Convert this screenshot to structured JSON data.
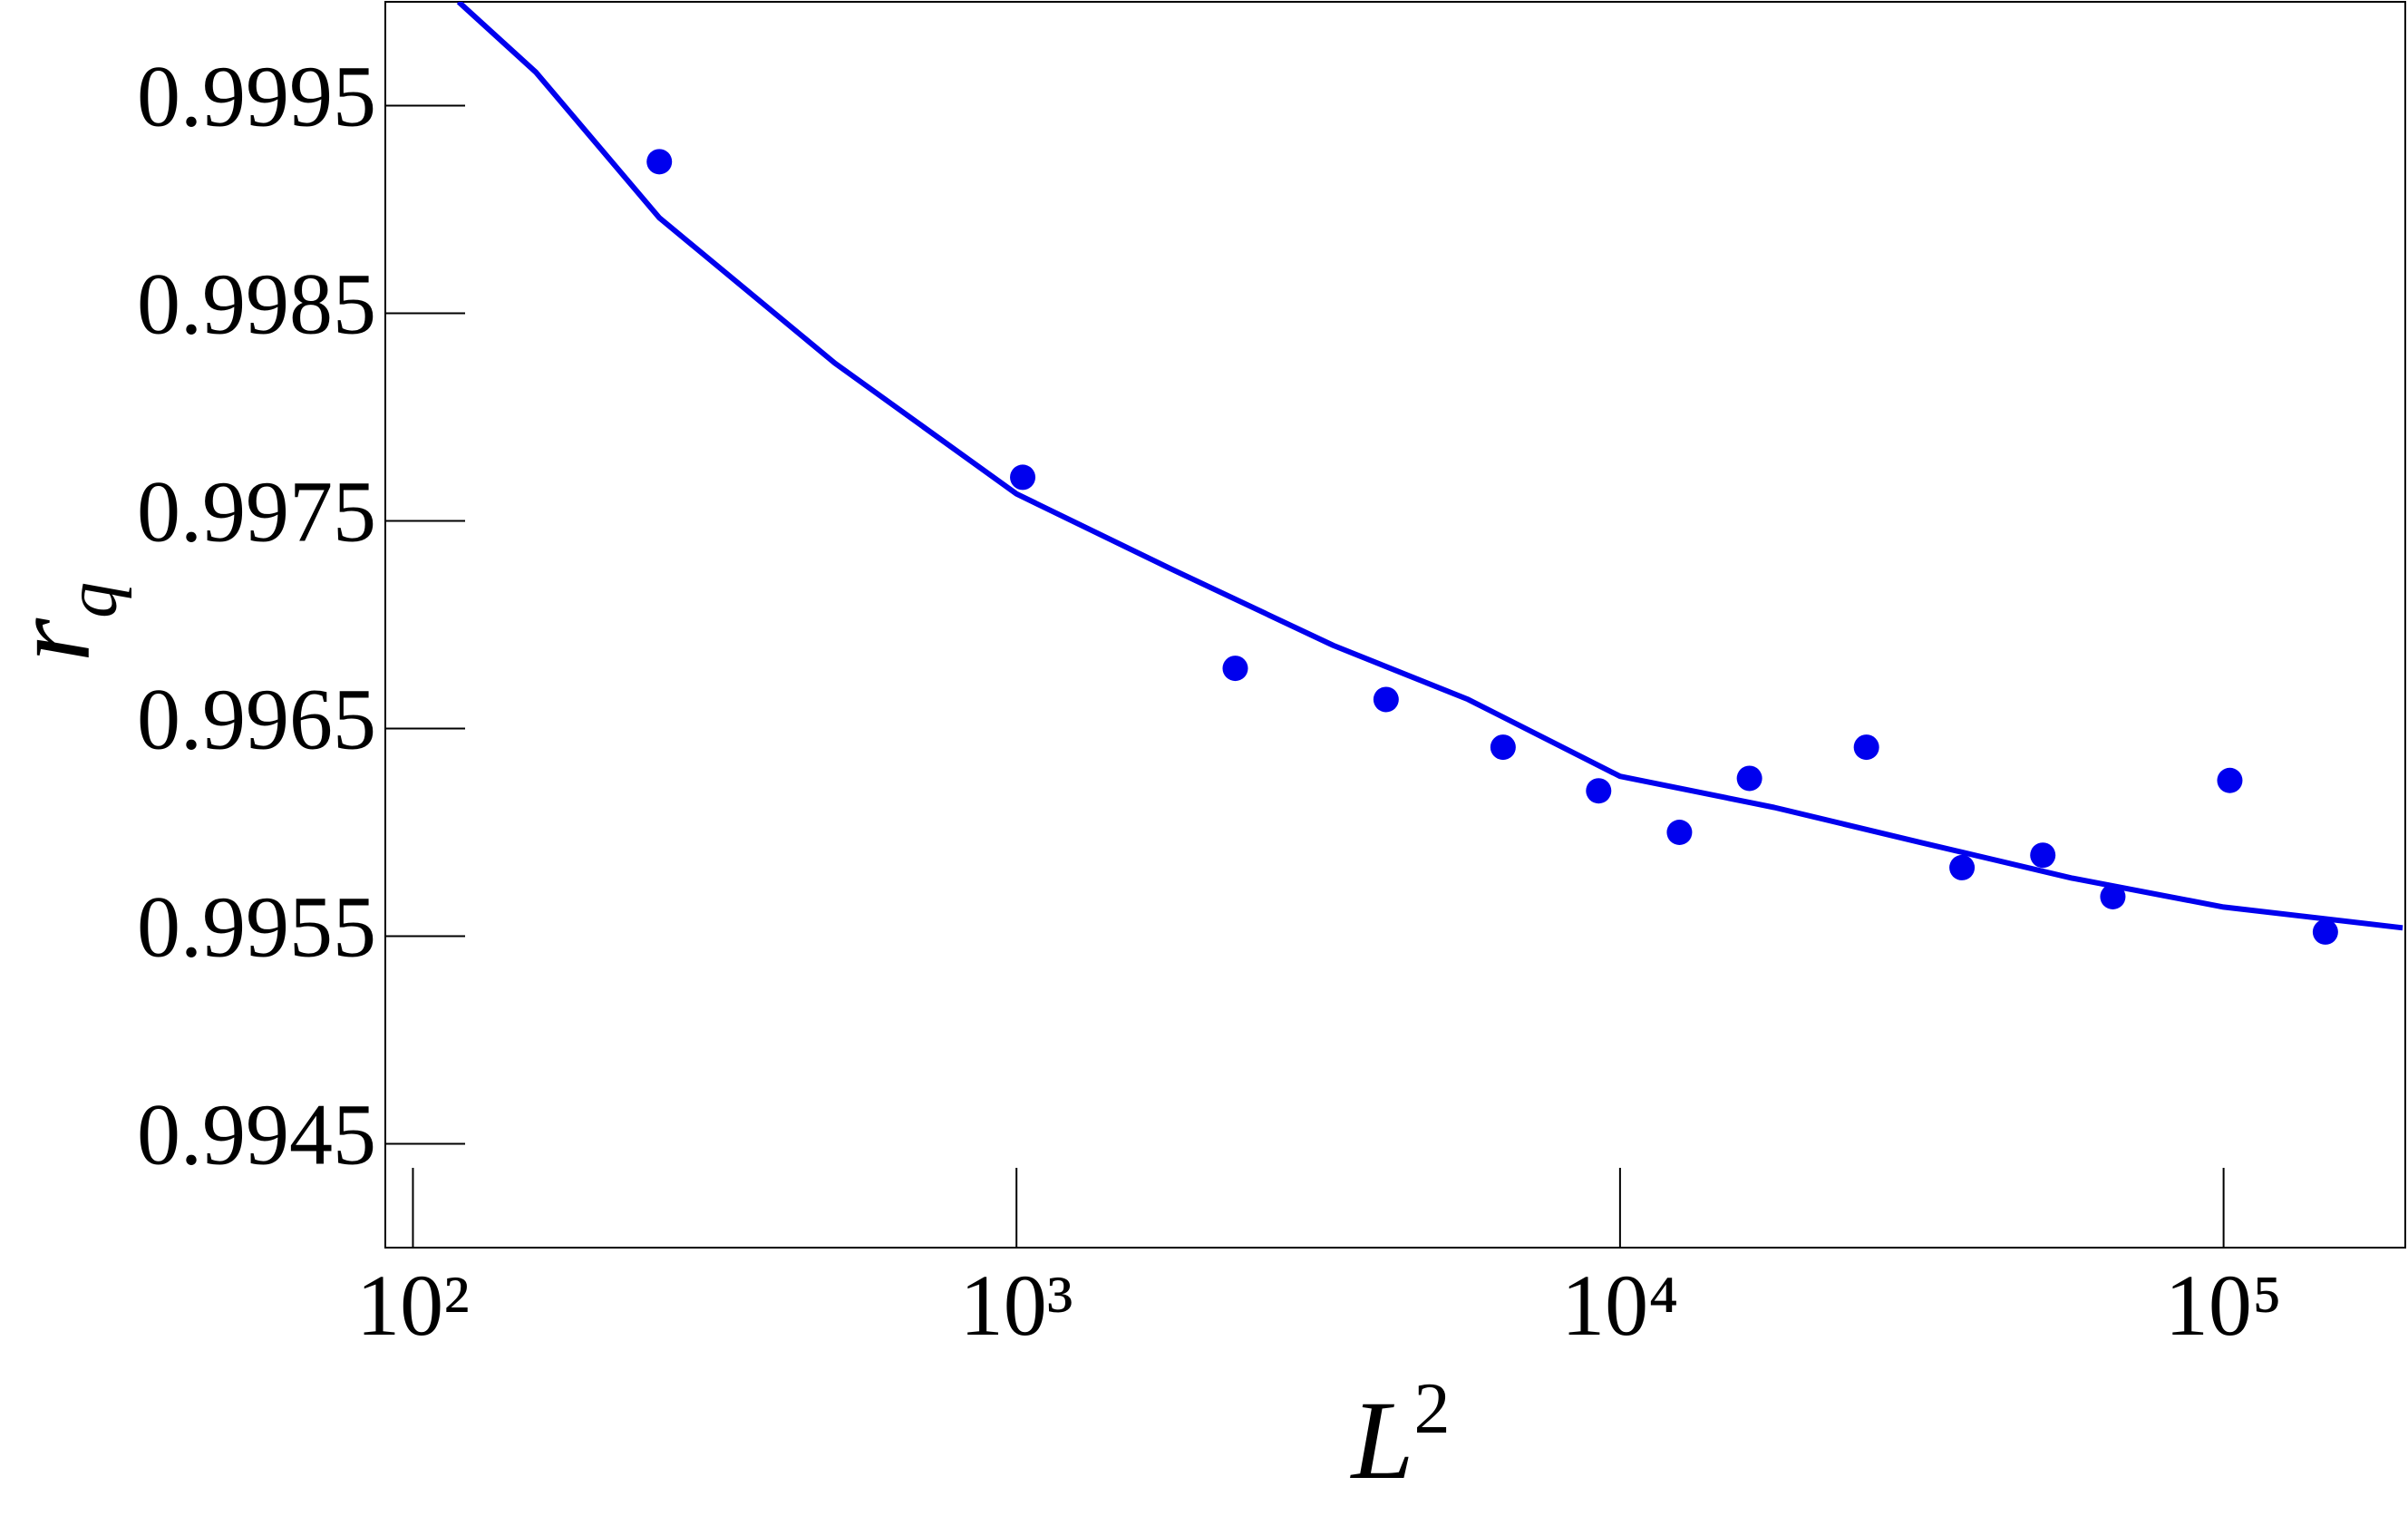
{
  "chart_data": {
    "type": "scatter",
    "xlabel": "L",
    "xlabel_sup": "2",
    "ylabel": "r",
    "ylabel_sub": "q",
    "xscale": "log",
    "xlim": [
      90,
      200000
    ],
    "ylim": [
      0.994,
      1.0
    ],
    "xticks": [
      {
        "value": 100,
        "label": "10²"
      },
      {
        "value": 1000,
        "label": "10³"
      },
      {
        "value": 10000,
        "label": "10⁴"
      },
      {
        "value": 100000,
        "label": "10⁵"
      }
    ],
    "yticks": [
      0.9945,
      0.9955,
      0.9965,
      0.9975,
      0.9985,
      0.9995
    ],
    "grid": false,
    "series": [
      {
        "type": "scatter",
        "color": "#0000ee",
        "x": [
          256,
          1024,
          2304,
          4096,
          6400,
          9216,
          12544,
          16384,
          25600,
          36864,
          50176,
          65536,
          102400,
          147456
        ],
        "values": [
          0.99923,
          0.99771,
          0.99679,
          0.99664,
          0.99641,
          0.9962,
          0.996,
          0.99626,
          0.99641,
          0.99583,
          0.99589,
          0.99569,
          0.99625,
          0.99552
        ]
      },
      {
        "type": "line",
        "color": "#0000ee",
        "x": [
          119,
          160,
          256,
          500,
          1000,
          1800,
          3350,
          5600,
          10000,
          18000,
          31600,
          56000,
          100000,
          198000
        ],
        "values": [
          1.0,
          0.99966,
          0.99896,
          0.99826,
          0.99763,
          0.99727,
          0.9969,
          0.99664,
          0.99627,
          0.99612,
          0.99595,
          0.99578,
          0.99564,
          0.99554
        ]
      }
    ]
  }
}
